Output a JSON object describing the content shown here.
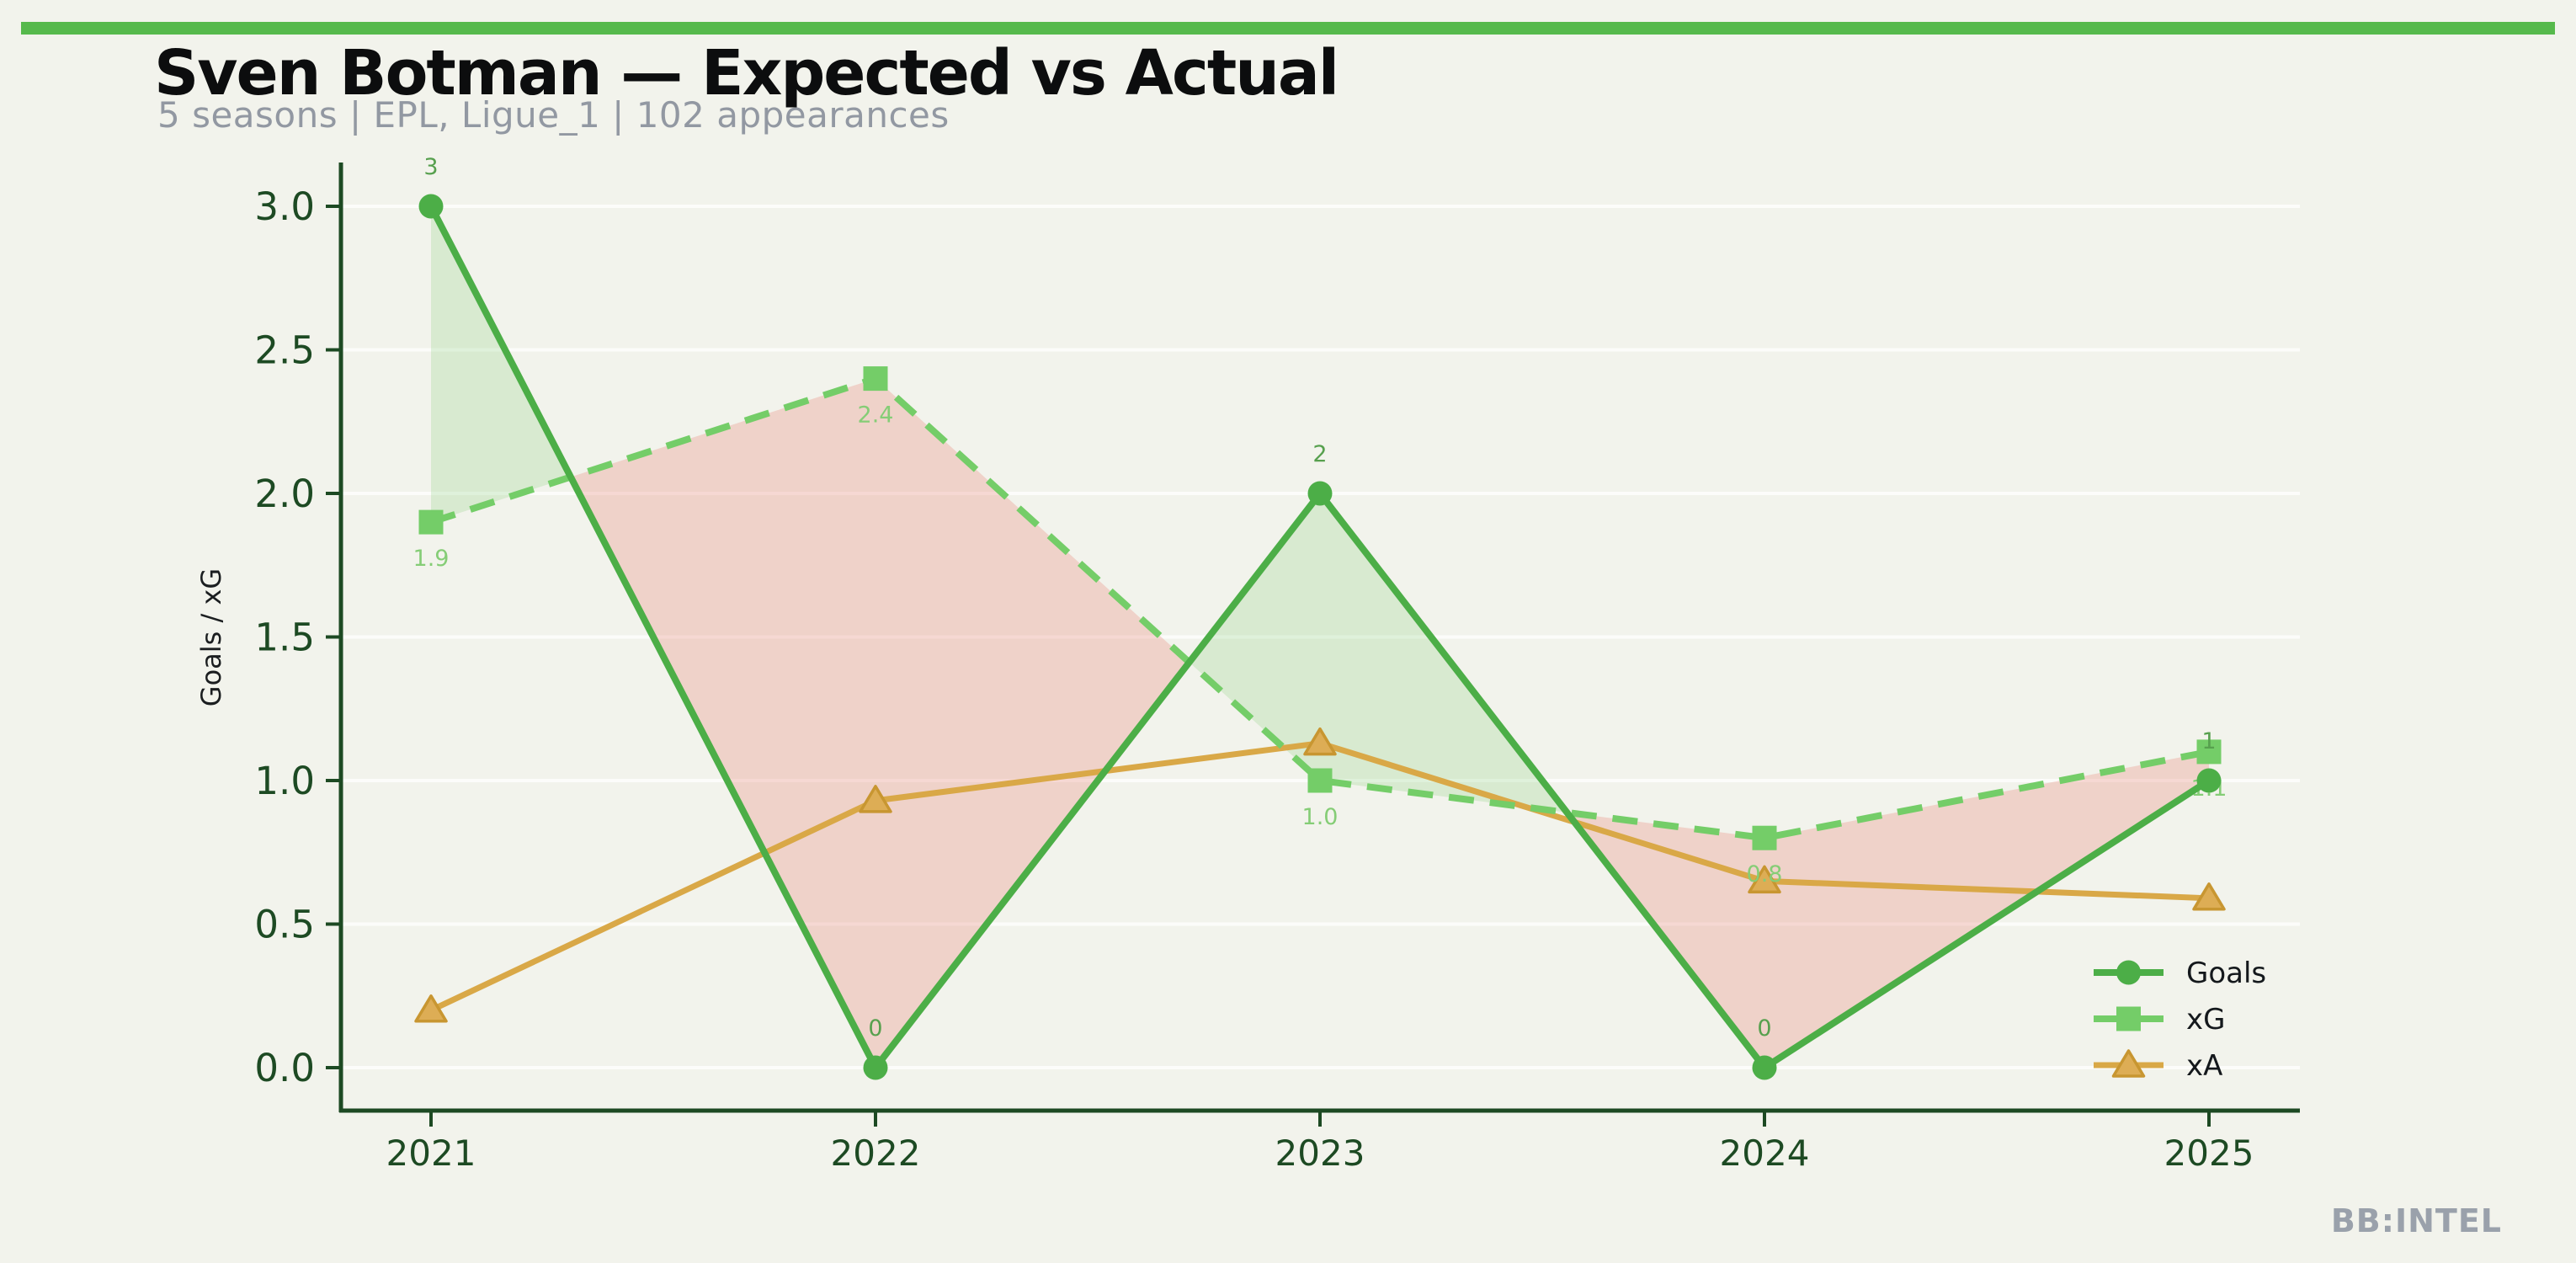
{
  "page": {
    "title": "Sven Botman — Expected vs Actual",
    "subtitle": "5 seasons | EPL, Ligue_1 | 102 appearances",
    "watermark": "BB:INTEL",
    "background_color": "#f2f3ec",
    "accent_bar_color": "#56b94c"
  },
  "chart_data": {
    "type": "line",
    "title": "Sven Botman — Expected vs Actual",
    "subtitle": "5 seasons | EPL, Ligue_1 | 102 appearances",
    "xlabel": "",
    "ylabel": "Goals / xG",
    "categories": [
      "2021",
      "2022",
      "2023",
      "2024",
      "2025"
    ],
    "series": [
      {
        "name": "Goals",
        "values": [
          3,
          0,
          2,
          0,
          1
        ],
        "point_labels": [
          "3",
          "0",
          "2",
          "0",
          "1"
        ],
        "color": "#4cae47",
        "label_color": "#57a04e",
        "marker": "circle",
        "line_style": "solid"
      },
      {
        "name": "xG",
        "values": [
          1.9,
          2.4,
          1.0,
          0.8,
          1.1
        ],
        "point_labels": [
          "1.9",
          "2.4",
          "1.0",
          "0.8",
          "1.1"
        ],
        "color": "#74cd68",
        "label_color": "#85cd76",
        "marker": "square",
        "line_style": "dashed"
      },
      {
        "name": "xA",
        "values": [
          0.2,
          0.93,
          1.13,
          0.65,
          0.59
        ],
        "point_labels": [],
        "color": "#d9a847",
        "marker_fill": "#ddad55",
        "marker_edge": "#c89631",
        "label_color": "#d9a847",
        "marker": "triangle",
        "line_style": "solid"
      }
    ],
    "ylim": [
      0,
      3.0
    ],
    "ytick_labels": [
      "0.0",
      "0.5",
      "1.0",
      "1.5",
      "2.0",
      "2.5",
      "3.0"
    ],
    "grid": true,
    "axis_color": "#1d4a23",
    "ylabel_color": "#1b1e20",
    "legend_position": "lower right",
    "legend_entries": [
      "Goals",
      "xG",
      "xA"
    ],
    "fills": {
      "overperform_color": "#7cce6e",
      "overperform_opacity": 0.22,
      "underperform_color": "#eb968a",
      "underperform_opacity": 0.35,
      "rule": "green where Goals > xG, pink where xG > Goals"
    }
  }
}
